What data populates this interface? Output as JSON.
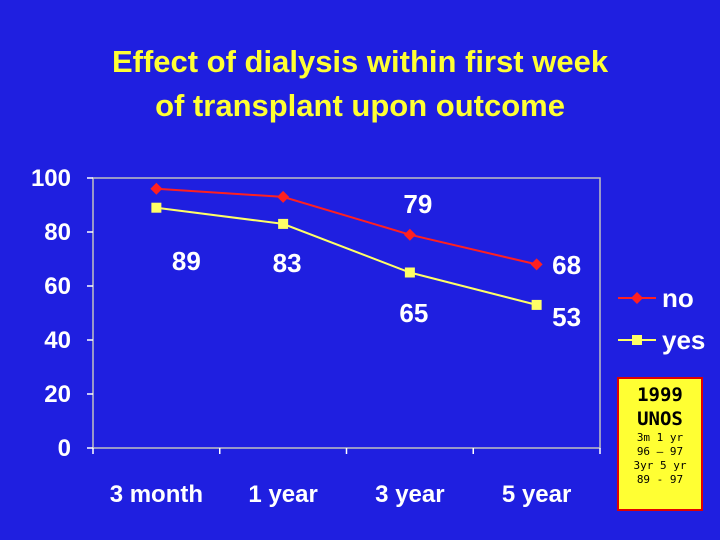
{
  "title": {
    "line1": "Effect of dialysis within first week",
    "line2": "of transplant upon outcome"
  },
  "colors": {
    "background": "#1f1fe0",
    "title": "#ffff33",
    "no": "#ff2020",
    "yes": "#ffff66",
    "plot_bg": "#1f1fe0",
    "note_bg": "#ffff33",
    "note_border": "#e00000"
  },
  "chart_data": {
    "type": "line",
    "categories": [
      "3 month",
      "1 year",
      "3 year",
      "5 year"
    ],
    "ylim": [
      0,
      100
    ],
    "yticks": [
      0,
      20,
      40,
      60,
      80,
      100
    ],
    "grid": false,
    "legend_position": "right",
    "series": [
      {
        "name": "no",
        "values": [
          96,
          93,
          79,
          68
        ],
        "color": "#ff2020",
        "marker": "diamond"
      },
      {
        "name": "yes",
        "values": [
          89,
          83,
          65,
          53
        ],
        "color": "#ffff66",
        "marker": "square"
      }
    ],
    "annotations": [
      "89",
      "83",
      "65",
      "53",
      "79",
      "68"
    ]
  },
  "note": {
    "year": "1999",
    "org": "UNOS",
    "line1": "3m 1 yr",
    "line2": "96 – 97",
    "line3": "3yr 5 yr",
    "line4": "89 - 97"
  }
}
